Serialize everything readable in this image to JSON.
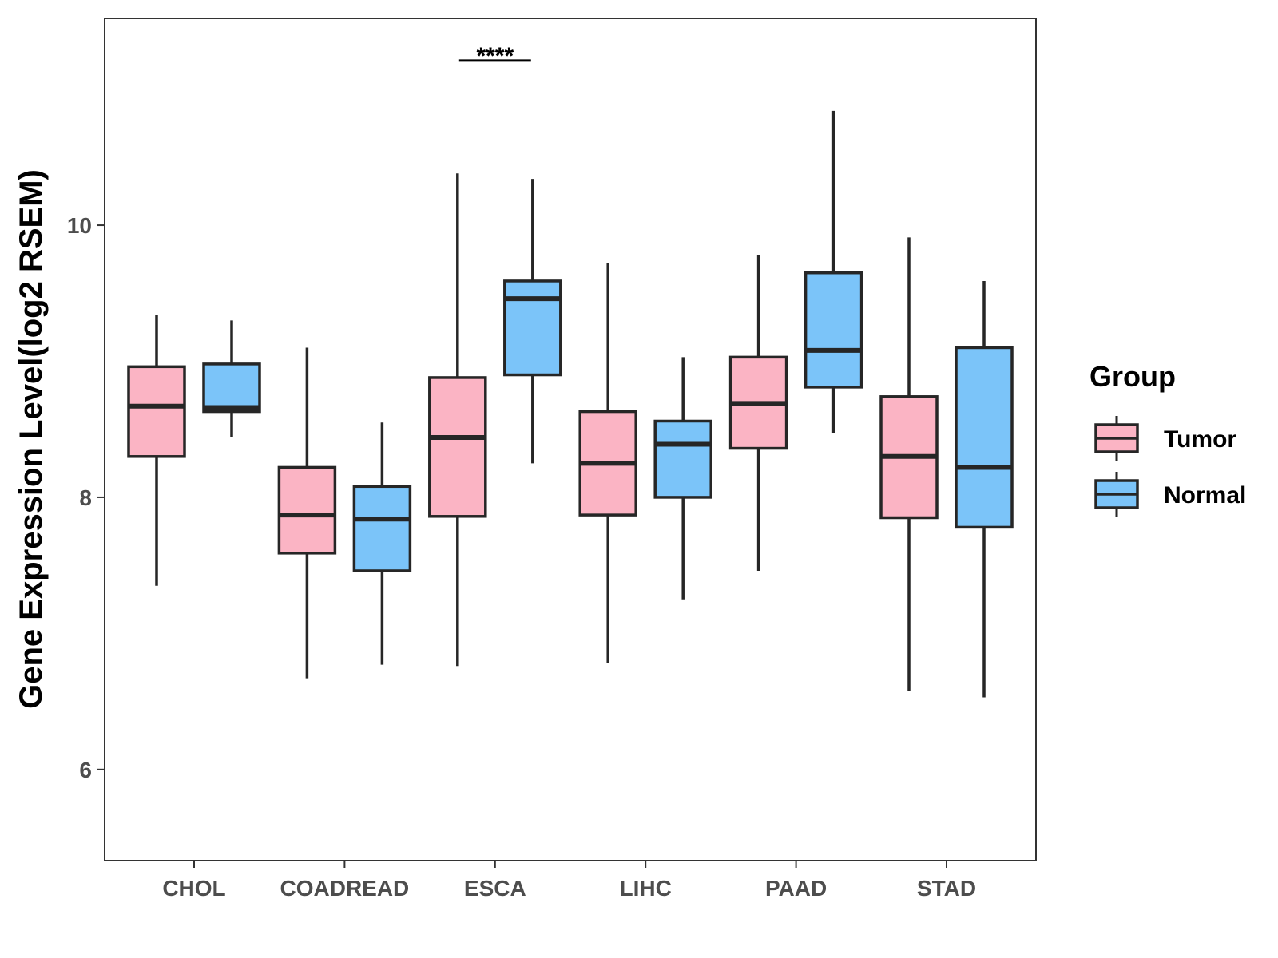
{
  "chart_data": {
    "type": "boxplot",
    "title": "",
    "xlabel": "",
    "ylabel": "Gene Expression Level(log2 RSEM)",
    "ylim": [
      5.33,
      11.52
    ],
    "yticks": [
      6,
      8,
      10
    ],
    "categories": [
      "CHOL",
      "COADREAD",
      "ESCA",
      "LIHC",
      "PAAD",
      "STAD"
    ],
    "legend": {
      "title": "Group",
      "placement": "right"
    },
    "series": [
      {
        "name": "Tumor",
        "color": "#FBB4C4",
        "boxes": [
          {
            "min": 7.35,
            "q1": 8.3,
            "median": 8.67,
            "q3": 8.96,
            "max": 9.34
          },
          {
            "min": 6.67,
            "q1": 7.59,
            "median": 7.87,
            "q3": 8.22,
            "max": 9.1
          },
          {
            "min": 6.76,
            "q1": 7.86,
            "median": 8.44,
            "q3": 8.88,
            "max": 10.38
          },
          {
            "min": 6.78,
            "q1": 7.87,
            "median": 8.25,
            "q3": 8.63,
            "max": 9.72
          },
          {
            "min": 7.46,
            "q1": 8.36,
            "median": 8.69,
            "q3": 9.03,
            "max": 9.78
          },
          {
            "min": 6.58,
            "q1": 7.85,
            "median": 8.3,
            "q3": 8.74,
            "max": 9.91
          }
        ]
      },
      {
        "name": "Normal",
        "color": "#7BC4F9",
        "boxes": [
          {
            "min": 8.44,
            "q1": 8.63,
            "median": 8.66,
            "q3": 8.98,
            "max": 9.3
          },
          {
            "min": 6.77,
            "q1": 7.46,
            "median": 7.84,
            "q3": 8.08,
            "max": 8.55
          },
          {
            "min": 8.25,
            "q1": 8.9,
            "median": 9.46,
            "q3": 9.59,
            "max": 10.34
          },
          {
            "min": 7.25,
            "q1": 8.0,
            "median": 8.39,
            "q3": 8.56,
            "max": 9.03
          },
          {
            "min": 8.47,
            "q1": 8.81,
            "median": 9.08,
            "q3": 9.65,
            "max": 10.84
          },
          {
            "min": 6.53,
            "q1": 7.78,
            "median": 8.22,
            "q3": 9.1,
            "max": 9.59
          }
        ]
      }
    ],
    "annotations": [
      {
        "category": "ESCA",
        "label": "****",
        "y": 11.21
      }
    ]
  }
}
